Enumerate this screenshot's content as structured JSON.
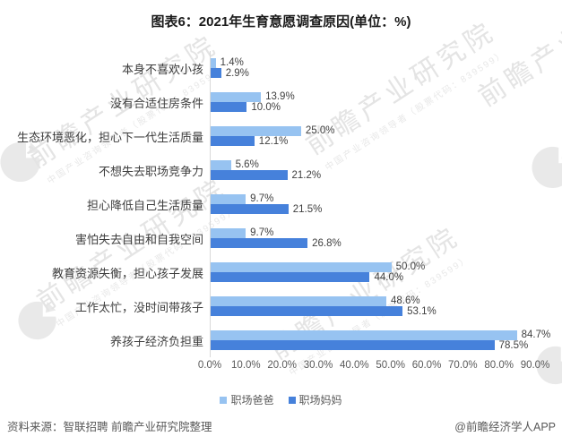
{
  "title": "图表6：2021年生育意愿调查原因(单位：%)",
  "chart_data": {
    "type": "bar",
    "orientation": "horizontal",
    "title": "图表6：2021年生育意愿调查原因(单位：%)",
    "categories": [
      "本身不喜欢小孩",
      "没有合适住房条件",
      "生态环境恶化，担心下一代生活质量",
      "不想失去职场竞争力",
      "担心降低自己生活质量",
      "害怕失去自由和自我空间",
      "教育资源失衡，担心孩子发展",
      "工作太忙，没时间带孩子",
      "养孩子经济负担重"
    ],
    "series": [
      {
        "name": "职场爸爸",
        "color": "#97C3F1",
        "values": [
          1.4,
          13.9,
          25.0,
          5.6,
          9.7,
          9.7,
          50.0,
          48.6,
          84.7
        ]
      },
      {
        "name": "职场妈妈",
        "color": "#4681DB",
        "values": [
          2.9,
          10.0,
          12.1,
          21.2,
          21.5,
          26.8,
          44.0,
          53.1,
          78.5
        ]
      }
    ],
    "xlim": [
      0,
      90
    ],
    "x_ticks": [
      "0.0%",
      "10.0%",
      "20.0%",
      "30.0%",
      "40.0%",
      "50.0%",
      "60.0%",
      "70.0%",
      "80.0%",
      "90.0%"
    ],
    "value_suffix": "%",
    "grid": false,
    "legend_position": "bottom",
    "axis_line_color": "#d9d9d9"
  },
  "footer": {
    "source": "资料来源：智联招聘 前瞻产业研究院整理",
    "credit": "@前瞻经济学人APP"
  },
  "watermark": {
    "text": "前瞻产业研究院",
    "subtext": "中国产业咨询领导者（股票代码：839599）"
  }
}
